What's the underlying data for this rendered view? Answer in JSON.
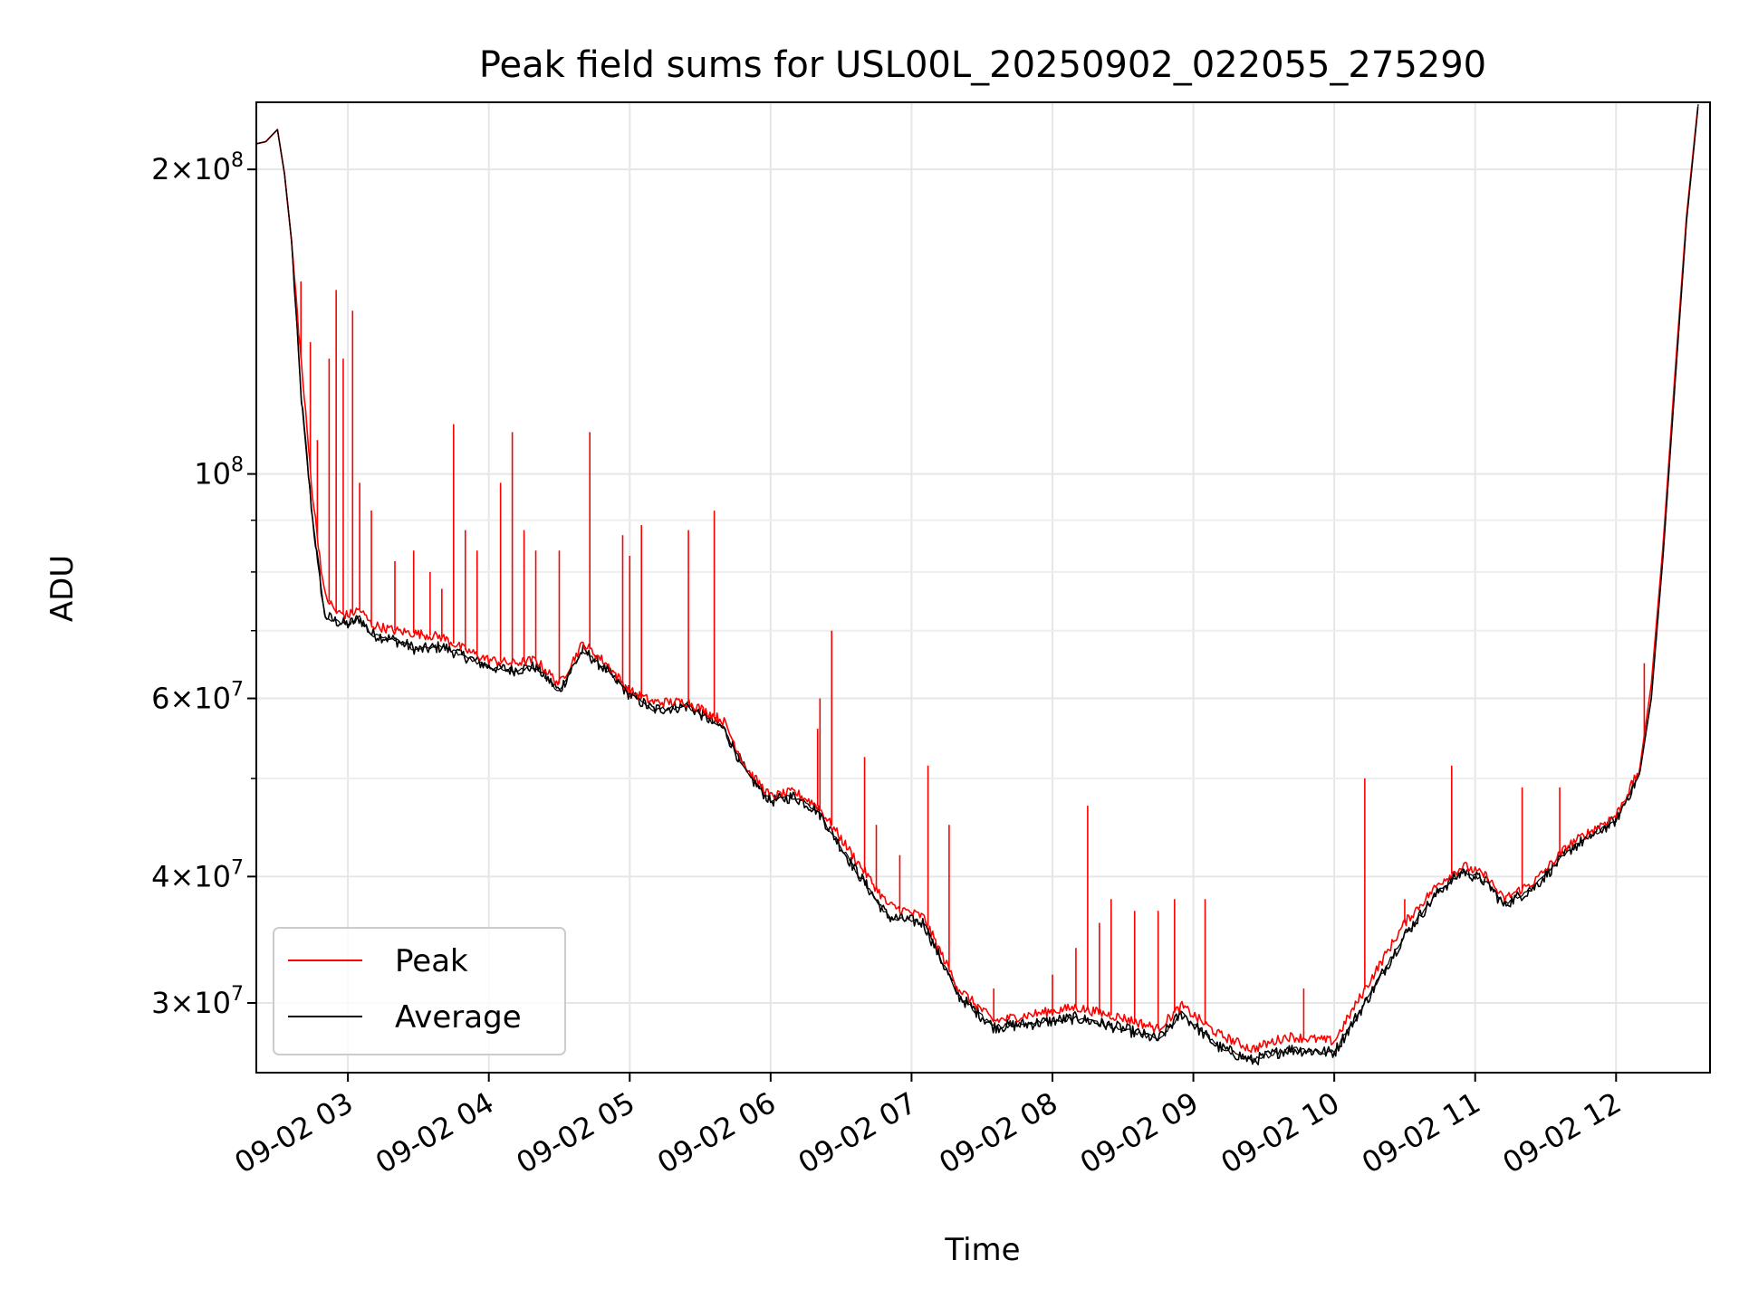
{
  "chart_data": {
    "type": "line",
    "title": "Peak field sums for USL00L_20250902_022055_275290",
    "xlabel": "Time",
    "ylabel": "ADU",
    "yscale": "log",
    "xlim": [
      "2025-09-02 02:21",
      "2025-09-02 12:40"
    ],
    "ylim": [
      25600000,
      233000000
    ],
    "grid": true,
    "legend_position": "lower-left",
    "x_ticks": [
      {
        "value": "2025-09-02 03:00",
        "label": "09-02 03"
      },
      {
        "value": "2025-09-02 04:00",
        "label": "09-02 04"
      },
      {
        "value": "2025-09-02 05:00",
        "label": "09-02 05"
      },
      {
        "value": "2025-09-02 06:00",
        "label": "09-02 06"
      },
      {
        "value": "2025-09-02 07:00",
        "label": "09-02 07"
      },
      {
        "value": "2025-09-02 08:00",
        "label": "09-02 08"
      },
      {
        "value": "2025-09-02 09:00",
        "label": "09-02 09"
      },
      {
        "value": "2025-09-02 10:00",
        "label": "09-02 10"
      },
      {
        "value": "2025-09-02 11:00",
        "label": "09-02 11"
      },
      {
        "value": "2025-09-02 12:00",
        "label": "09-02 12"
      }
    ],
    "y_ticks": [
      {
        "value": 200000000,
        "mantissa": "2",
        "exponent": "8"
      },
      {
        "value": 100000000,
        "mantissa": "",
        "exponent": "8"
      },
      {
        "value": 60000000,
        "mantissa": "6",
        "exponent": "7"
      },
      {
        "value": 40000000,
        "mantissa": "4",
        "exponent": "7"
      },
      {
        "value": 30000000,
        "mantissa": "3",
        "exponent": "7"
      }
    ],
    "y_minor_ticks": [
      50000000,
      70000000,
      80000000,
      90000000
    ],
    "series": [
      {
        "name": "Peak",
        "color": "#ff0000",
        "points": [
          [
            "2025-09-02 02:21",
            212000000
          ],
          [
            "2025-09-02 02:25",
            213000000
          ],
          [
            "2025-09-02 02:30",
            219000000
          ],
          [
            "2025-09-02 02:33",
            198000000
          ],
          [
            "2025-09-02 02:36",
            170000000
          ],
          [
            "2025-09-02 02:40",
            130000000
          ],
          [
            "2025-09-02 02:45",
            95000000
          ],
          [
            "2025-09-02 02:50",
            76000000
          ],
          [
            "2025-09-02 02:55",
            73000000
          ],
          [
            "2025-09-02 03:00",
            72500000
          ],
          [
            "2025-09-02 03:05",
            73500000
          ],
          [
            "2025-09-02 03:10",
            71000000
          ],
          [
            "2025-09-02 03:20",
            70000000
          ],
          [
            "2025-09-02 03:30",
            69500000
          ],
          [
            "2025-09-02 03:40",
            69000000
          ],
          [
            "2025-09-02 03:50",
            67000000
          ],
          [
            "2025-09-02 04:00",
            65500000
          ],
          [
            "2025-09-02 04:10",
            65000000
          ],
          [
            "2025-09-02 04:20",
            65500000
          ],
          [
            "2025-09-02 04:30",
            62000000
          ],
          [
            "2025-09-02 04:40",
            68000000
          ],
          [
            "2025-09-02 04:50",
            65000000
          ],
          [
            "2025-09-02 05:00",
            61000000
          ],
          [
            "2025-09-02 05:10",
            59500000
          ],
          [
            "2025-09-02 05:25",
            59500000
          ],
          [
            "2025-09-02 05:40",
            57000000
          ],
          [
            "2025-09-02 05:50",
            51000000
          ],
          [
            "2025-09-02 06:00",
            48000000
          ],
          [
            "2025-09-02 06:10",
            48500000
          ],
          [
            "2025-09-02 06:20",
            47000000
          ],
          [
            "2025-09-02 06:35",
            42000000
          ],
          [
            "2025-09-02 06:50",
            37500000
          ],
          [
            "2025-09-02 07:05",
            36500000
          ],
          [
            "2025-09-02 07:20",
            31000000
          ],
          [
            "2025-09-02 07:35",
            28800000
          ],
          [
            "2025-09-02 07:50",
            29200000
          ],
          [
            "2025-09-02 08:10",
            29700000
          ],
          [
            "2025-09-02 08:30",
            29000000
          ],
          [
            "2025-09-02 08:45",
            28300000
          ],
          [
            "2025-09-02 08:55",
            29800000
          ],
          [
            "2025-09-02 09:10",
            28000000
          ],
          [
            "2025-09-02 09:25",
            27000000
          ],
          [
            "2025-09-02 09:40",
            27800000
          ],
          [
            "2025-09-02 10:00",
            27500000
          ],
          [
            "2025-09-02 10:15",
            31500000
          ],
          [
            "2025-09-02 10:30",
            36000000
          ],
          [
            "2025-09-02 10:45",
            39500000
          ],
          [
            "2025-09-02 10:55",
            41000000
          ],
          [
            "2025-09-02 11:05",
            40000000
          ],
          [
            "2025-09-02 11:12",
            38000000
          ],
          [
            "2025-09-02 11:25",
            39500000
          ],
          [
            "2025-09-02 11:40",
            43000000
          ],
          [
            "2025-09-02 12:00",
            46000000
          ],
          [
            "2025-09-02 12:10",
            51000000
          ],
          [
            "2025-09-02 12:15",
            62000000
          ],
          [
            "2025-09-02 12:20",
            85000000
          ],
          [
            "2025-09-02 12:25",
            125000000
          ],
          [
            "2025-09-02 12:30",
            180000000
          ],
          [
            "2025-09-02 12:35",
            233000000
          ]
        ]
      },
      {
        "name": "Average",
        "color": "#000000",
        "points": [
          [
            "2025-09-02 02:21",
            212000000
          ],
          [
            "2025-09-02 02:25",
            213000000
          ],
          [
            "2025-09-02 02:30",
            219000000
          ],
          [
            "2025-09-02 02:33",
            198000000
          ],
          [
            "2025-09-02 02:36",
            170000000
          ],
          [
            "2025-09-02 02:40",
            120000000
          ],
          [
            "2025-09-02 02:45",
            90000000
          ],
          [
            "2025-09-02 02:50",
            72500000
          ],
          [
            "2025-09-02 02:55",
            71500000
          ],
          [
            "2025-09-02 03:00",
            71000000
          ],
          [
            "2025-09-02 03:05",
            72000000
          ],
          [
            "2025-09-02 03:10",
            69500000
          ],
          [
            "2025-09-02 03:20",
            68500000
          ],
          [
            "2025-09-02 03:30",
            67000000
          ],
          [
            "2025-09-02 03:40",
            67500000
          ],
          [
            "2025-09-02 03:50",
            66000000
          ],
          [
            "2025-09-02 04:00",
            64500000
          ],
          [
            "2025-09-02 04:10",
            64000000
          ],
          [
            "2025-09-02 04:20",
            64500000
          ],
          [
            "2025-09-02 04:30",
            61000000
          ],
          [
            "2025-09-02 04:40",
            67000000
          ],
          [
            "2025-09-02 04:50",
            64000000
          ],
          [
            "2025-09-02 05:00",
            60500000
          ],
          [
            "2025-09-02 05:10",
            58500000
          ],
          [
            "2025-09-02 05:25",
            59000000
          ],
          [
            "2025-09-02 05:40",
            56000000
          ],
          [
            "2025-09-02 05:50",
            50500000
          ],
          [
            "2025-09-02 06:00",
            47500000
          ],
          [
            "2025-09-02 06:10",
            48000000
          ],
          [
            "2025-09-02 06:20",
            46500000
          ],
          [
            "2025-09-02 06:35",
            41000000
          ],
          [
            "2025-09-02 06:50",
            36500000
          ],
          [
            "2025-09-02 07:05",
            36000000
          ],
          [
            "2025-09-02 07:20",
            30500000
          ],
          [
            "2025-09-02 07:35",
            28400000
          ],
          [
            "2025-09-02 07:50",
            28600000
          ],
          [
            "2025-09-02 08:10",
            29000000
          ],
          [
            "2025-09-02 08:30",
            28300000
          ],
          [
            "2025-09-02 08:45",
            27600000
          ],
          [
            "2025-09-02 08:55",
            29300000
          ],
          [
            "2025-09-02 09:10",
            27200000
          ],
          [
            "2025-09-02 09:25",
            26300000
          ],
          [
            "2025-09-02 09:40",
            27000000
          ],
          [
            "2025-09-02 10:00",
            26800000
          ],
          [
            "2025-09-02 10:15",
            30500000
          ],
          [
            "2025-09-02 10:30",
            35000000
          ],
          [
            "2025-09-02 10:45",
            38800000
          ],
          [
            "2025-09-02 10:55",
            40500000
          ],
          [
            "2025-09-02 11:05",
            39500000
          ],
          [
            "2025-09-02 11:12",
            37500000
          ],
          [
            "2025-09-02 11:25",
            39000000
          ],
          [
            "2025-09-02 11:40",
            42500000
          ],
          [
            "2025-09-02 12:00",
            45500000
          ],
          [
            "2025-09-02 12:10",
            50500000
          ],
          [
            "2025-09-02 12:15",
            60000000
          ],
          [
            "2025-09-02 12:20",
            83000000
          ],
          [
            "2025-09-02 12:25",
            122000000
          ],
          [
            "2025-09-02 12:30",
            178000000
          ],
          [
            "2025-09-02 12:35",
            232000000
          ]
        ]
      }
    ],
    "peak_spikes": [
      [
        "2025-09-02 02:40",
        155000000
      ],
      [
        "2025-09-02 02:44",
        135000000
      ],
      [
        "2025-09-02 02:47",
        108000000
      ],
      [
        "2025-09-02 02:52",
        130000000
      ],
      [
        "2025-09-02 02:55",
        152000000
      ],
      [
        "2025-09-02 02:58",
        130000000
      ],
      [
        "2025-09-02 03:02",
        145000000
      ],
      [
        "2025-09-02 03:05",
        98000000
      ],
      [
        "2025-09-02 03:10",
        92000000
      ],
      [
        "2025-09-02 03:20",
        82000000
      ],
      [
        "2025-09-02 03:28",
        84000000
      ],
      [
        "2025-09-02 03:35",
        80000000
      ],
      [
        "2025-09-02 03:40",
        77000000
      ],
      [
        "2025-09-02 03:45",
        112000000
      ],
      [
        "2025-09-02 03:50",
        88000000
      ],
      [
        "2025-09-02 03:55",
        84000000
      ],
      [
        "2025-09-02 04:05",
        98000000
      ],
      [
        "2025-09-02 04:10",
        110000000
      ],
      [
        "2025-09-02 04:15",
        88000000
      ],
      [
        "2025-09-02 04:20",
        84000000
      ],
      [
        "2025-09-02 04:30",
        84000000
      ],
      [
        "2025-09-02 04:43",
        110000000
      ],
      [
        "2025-09-02 04:57",
        87000000
      ],
      [
        "2025-09-02 05:00",
        83000000
      ],
      [
        "2025-09-02 05:05",
        89000000
      ],
      [
        "2025-09-02 05:25",
        88000000
      ],
      [
        "2025-09-02 05:36",
        92000000
      ],
      [
        "2025-09-02 06:20",
        56000000
      ],
      [
        "2025-09-02 06:21",
        60000000
      ],
      [
        "2025-09-02 06:26",
        70000000
      ],
      [
        "2025-09-02 06:40",
        52500000
      ],
      [
        "2025-09-02 06:45",
        45000000
      ],
      [
        "2025-09-02 06:55",
        42000000
      ],
      [
        "2025-09-02 07:07",
        51500000
      ],
      [
        "2025-09-02 07:16",
        45000000
      ],
      [
        "2025-09-02 07:35",
        31000000
      ],
      [
        "2025-09-02 08:00",
        32000000
      ],
      [
        "2025-09-02 08:10",
        34000000
      ],
      [
        "2025-09-02 08:15",
        47000000
      ],
      [
        "2025-09-02 08:20",
        36000000
      ],
      [
        "2025-09-02 08:25",
        38000000
      ],
      [
        "2025-09-02 08:35",
        37000000
      ],
      [
        "2025-09-02 08:45",
        37000000
      ],
      [
        "2025-09-02 08:52",
        38000000
      ],
      [
        "2025-09-02 09:05",
        38000000
      ],
      [
        "2025-09-02 09:47",
        31000000
      ],
      [
        "2025-09-02 10:13",
        50000000
      ],
      [
        "2025-09-02 10:30",
        38000000
      ],
      [
        "2025-09-02 10:50",
        51500000
      ],
      [
        "2025-09-02 11:20",
        49000000
      ],
      [
        "2025-09-02 11:36",
        49000000
      ],
      [
        "2025-09-02 12:12",
        65000000
      ]
    ]
  }
}
